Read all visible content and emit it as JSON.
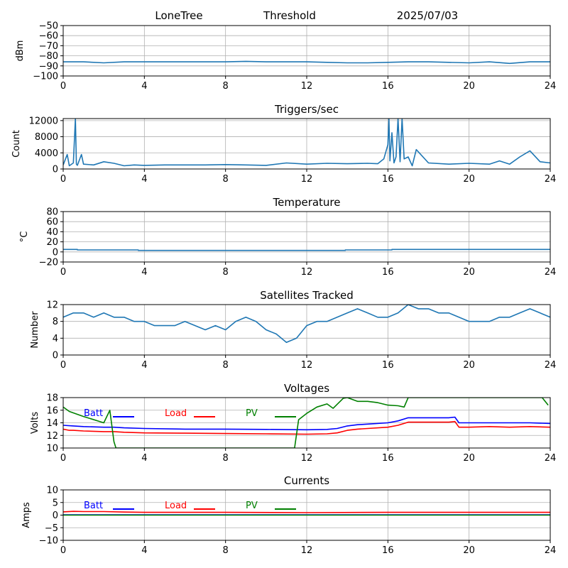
{
  "header": {
    "station": "LoneTree",
    "mode": "Threshold",
    "date": "2025/07/03"
  },
  "colors": {
    "series": "#1f77b4",
    "grid": "#b0b0b0",
    "batt": "#0000ff",
    "load": "#ff0000",
    "pv": "#008000"
  },
  "chart_data": [
    {
      "type": "line",
      "title": "",
      "xlabel": "",
      "ylabel": "dBm",
      "xlim": [
        0,
        24
      ],
      "ylim": [
        -100,
        -50
      ],
      "xticks": [
        0,
        4,
        8,
        12,
        16,
        20,
        24
      ],
      "yticks": [
        -100,
        -90,
        -80,
        -70,
        -60,
        -50
      ],
      "grid": true,
      "series": [
        {
          "color": "#1f77b4",
          "x": [
            0,
            1,
            2,
            3,
            4,
            5,
            6,
            7,
            8,
            9,
            10,
            11,
            12,
            13,
            14,
            15,
            16,
            17,
            18,
            19,
            20,
            21,
            22,
            23,
            24
          ],
          "y": [
            -86,
            -86,
            -87,
            -86,
            -86,
            -86,
            -86,
            -86,
            -86,
            -85.5,
            -86,
            -86,
            -86,
            -86.5,
            -87,
            -87,
            -86.5,
            -86,
            -86,
            -86.5,
            -87,
            -86,
            -87.5,
            -86,
            -86
          ]
        }
      ]
    },
    {
      "type": "line",
      "title": "Triggers/sec",
      "xlabel": "",
      "ylabel": "Count",
      "xlim": [
        0,
        24
      ],
      "ylim": [
        0,
        12500
      ],
      "xticks": [
        0,
        4,
        8,
        12,
        16,
        20,
        24
      ],
      "yticks": [
        0,
        4000,
        8000,
        12000
      ],
      "grid": true,
      "series": [
        {
          "color": "#1f77b4",
          "x": [
            0,
            0.2,
            0.3,
            0.5,
            0.6,
            0.65,
            0.7,
            0.9,
            1.0,
            1.5,
            2.0,
            2.5,
            3.0,
            3.5,
            4.0,
            5.0,
            6.0,
            7.0,
            8.0,
            9.0,
            10.0,
            11.0,
            12.0,
            13.0,
            14.0,
            15.0,
            15.5,
            15.8,
            16.0,
            16.05,
            16.1,
            16.2,
            16.3,
            16.4,
            16.5,
            16.6,
            16.7,
            16.8,
            17.0,
            17.2,
            17.4,
            18.0,
            19.0,
            20.0,
            21.0,
            21.5,
            22.0,
            22.5,
            23.0,
            23.5,
            24.0
          ],
          "y": [
            1000,
            3600,
            800,
            1500,
            12500,
            1200,
            900,
            3600,
            1200,
            1000,
            1800,
            1400,
            800,
            1000,
            900,
            1000,
            1000,
            1000,
            1100,
            1000,
            900,
            1500,
            1200,
            1400,
            1300,
            1400,
            1300,
            2500,
            6000,
            12500,
            2000,
            9000,
            1500,
            3000,
            12500,
            1800,
            12500,
            2500,
            3000,
            800,
            4800,
            1500,
            1200,
            1400,
            1200,
            2000,
            1200,
            3000,
            4500,
            1800,
            1500
          ]
        }
      ]
    },
    {
      "type": "line",
      "title": "Temperature",
      "xlabel": "",
      "ylabel": "°C",
      "xlim": [
        0,
        24
      ],
      "ylim": [
        -20,
        80
      ],
      "xticks": [
        0,
        4,
        8,
        12,
        16,
        20,
        24
      ],
      "yticks": [
        -20,
        0,
        20,
        40,
        60,
        80
      ],
      "grid": true,
      "series": [
        {
          "color": "#1f77b4",
          "x": [
            0,
            0.7,
            0.7,
            3.7,
            3.7,
            13.9,
            13.9,
            16.2,
            16.2,
            24
          ],
          "y": [
            5,
            5,
            4,
            4,
            3,
            3,
            4,
            4,
            5,
            5
          ]
        }
      ]
    },
    {
      "type": "line",
      "title": "Satellites Tracked",
      "xlabel": "",
      "ylabel": "Number",
      "xlim": [
        0,
        24
      ],
      "ylim": [
        0,
        12
      ],
      "xticks": [
        0,
        4,
        8,
        12,
        16,
        20,
        24
      ],
      "yticks": [
        0,
        4,
        8,
        12
      ],
      "grid": true,
      "series": [
        {
          "color": "#1f77b4",
          "x": [
            0,
            0.5,
            1.0,
            1.5,
            2.0,
            2.5,
            3.0,
            3.5,
            4.0,
            4.5,
            5.0,
            5.5,
            6.0,
            6.5,
            7.0,
            7.5,
            8.0,
            8.5,
            9.0,
            9.5,
            10.0,
            10.5,
            11.0,
            11.5,
            12.0,
            12.5,
            13.0,
            13.5,
            14.0,
            14.5,
            15.0,
            15.5,
            16.0,
            16.5,
            17.0,
            17.5,
            18.0,
            18.5,
            19.0,
            19.5,
            20.0,
            20.5,
            21.0,
            21.5,
            22.0,
            22.5,
            23.0,
            23.5,
            24.0
          ],
          "y": [
            9,
            10,
            10,
            9,
            10,
            9,
            9,
            8,
            8,
            7,
            7,
            7,
            8,
            7,
            6,
            7,
            6,
            8,
            9,
            8,
            6,
            5,
            3,
            4,
            7,
            8,
            8,
            9,
            10,
            11,
            10,
            9,
            9,
            10,
            12,
            11,
            11,
            10,
            10,
            9,
            8,
            8,
            8,
            9,
            9,
            10,
            11,
            10,
            9
          ]
        }
      ]
    },
    {
      "type": "line",
      "title": "Voltages",
      "xlabel": "",
      "ylabel": "Volts",
      "xlim": [
        0,
        24
      ],
      "ylim": [
        10,
        18
      ],
      "xticks": [
        0,
        4,
        8,
        12,
        16,
        20,
        24
      ],
      "yticks": [
        10,
        12,
        14,
        16,
        18
      ],
      "grid": true,
      "legend": "top",
      "series": [
        {
          "name": "Batt",
          "color": "#0000ff",
          "x": [
            0,
            0.5,
            1,
            2,
            2.5,
            3,
            4,
            6,
            8,
            10,
            12,
            13,
            13.5,
            14,
            14.5,
            15,
            16,
            16.5,
            17,
            18,
            19,
            19.3,
            19.5,
            20,
            21,
            22,
            23,
            24
          ],
          "y": [
            13.6,
            13.5,
            13.4,
            13.3,
            13.3,
            13.2,
            13.1,
            13.0,
            13.0,
            12.95,
            12.9,
            12.95,
            13.1,
            13.5,
            13.7,
            13.8,
            14.0,
            14.3,
            14.8,
            14.8,
            14.8,
            14.9,
            14.0,
            14.0,
            14.0,
            14.0,
            14.0,
            13.9
          ]
        },
        {
          "name": "Load",
          "color": "#ff0000",
          "x": [
            0,
            0.3,
            0.5,
            1,
            2,
            2.5,
            3,
            4,
            6,
            8,
            10,
            12,
            13,
            13.5,
            14,
            14.5,
            15,
            16,
            16.5,
            17,
            18,
            19,
            19.3,
            19.5,
            20,
            21,
            22,
            23,
            24
          ],
          "y": [
            13.0,
            12.8,
            12.8,
            12.7,
            12.6,
            12.6,
            12.5,
            12.4,
            12.35,
            12.3,
            12.25,
            12.2,
            12.25,
            12.4,
            12.8,
            13.0,
            13.1,
            13.3,
            13.6,
            14.1,
            14.1,
            14.1,
            14.2,
            13.3,
            13.3,
            13.4,
            13.3,
            13.4,
            13.3
          ]
        },
        {
          "name": "PV",
          "color": "#008000",
          "x": [
            0,
            0.3,
            1,
            2,
            2.3,
            2.5,
            2.6,
            11.4,
            11.6,
            12,
            12.5,
            13,
            13.3,
            13.8,
            14,
            14.5,
            15,
            15.5,
            16,
            16.5,
            16.8,
            17.0,
            23.6,
            23.9
          ],
          "y": [
            16.5,
            15.8,
            15.0,
            14.0,
            16.0,
            11.0,
            10.0,
            10.0,
            14.5,
            15.5,
            16.5,
            17.0,
            16.3,
            17.9,
            18.0,
            17.4,
            17.4,
            17.2,
            16.8,
            16.7,
            16.5,
            18.0,
            18.0,
            16.8
          ]
        }
      ]
    },
    {
      "type": "line",
      "title": "Currents",
      "xlabel": "",
      "ylabel": "Amps",
      "xlim": [
        0,
        24
      ],
      "ylim": [
        -10,
        10
      ],
      "xticks": [
        0,
        4,
        8,
        12,
        16,
        20,
        24
      ],
      "yticks": [
        -10,
        -5,
        0,
        5,
        10
      ],
      "grid": true,
      "legend": "top",
      "series": [
        {
          "name": "Batt",
          "color": "#0000ff",
          "x": [
            0,
            24
          ],
          "y": [
            0.1,
            0.1
          ]
        },
        {
          "name": "Load",
          "color": "#ff0000",
          "x": [
            0,
            0.5,
            1,
            2,
            3,
            4,
            8,
            12,
            16,
            20,
            24
          ],
          "y": [
            1.3,
            1.5,
            1.4,
            1.4,
            1.2,
            1.1,
            1.1,
            1.0,
            1.1,
            1.1,
            1.1
          ]
        },
        {
          "name": "PV",
          "color": "#008000",
          "x": [
            0,
            24
          ],
          "y": [
            0,
            0
          ]
        }
      ]
    }
  ]
}
